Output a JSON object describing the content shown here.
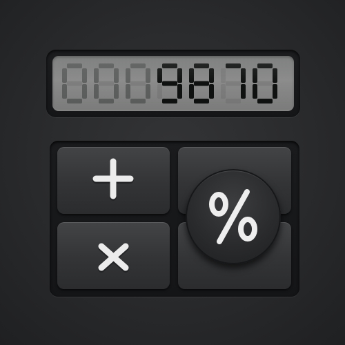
{
  "display": {
    "value": "0009870",
    "digit_count": 7
  },
  "keypad": {
    "keys": [
      {
        "name": "plus",
        "icon": "plus-icon"
      },
      {
        "name": "times",
        "icon": "multiply-icon"
      },
      {
        "name": "percent",
        "icon": "percent-icon"
      }
    ]
  },
  "colors": {
    "background": "#2b2c2e",
    "lcd": "#858685",
    "lcd_segment_on": "#0f1010",
    "key_face": "#3a3b3d",
    "symbol": "#eeeeee"
  }
}
